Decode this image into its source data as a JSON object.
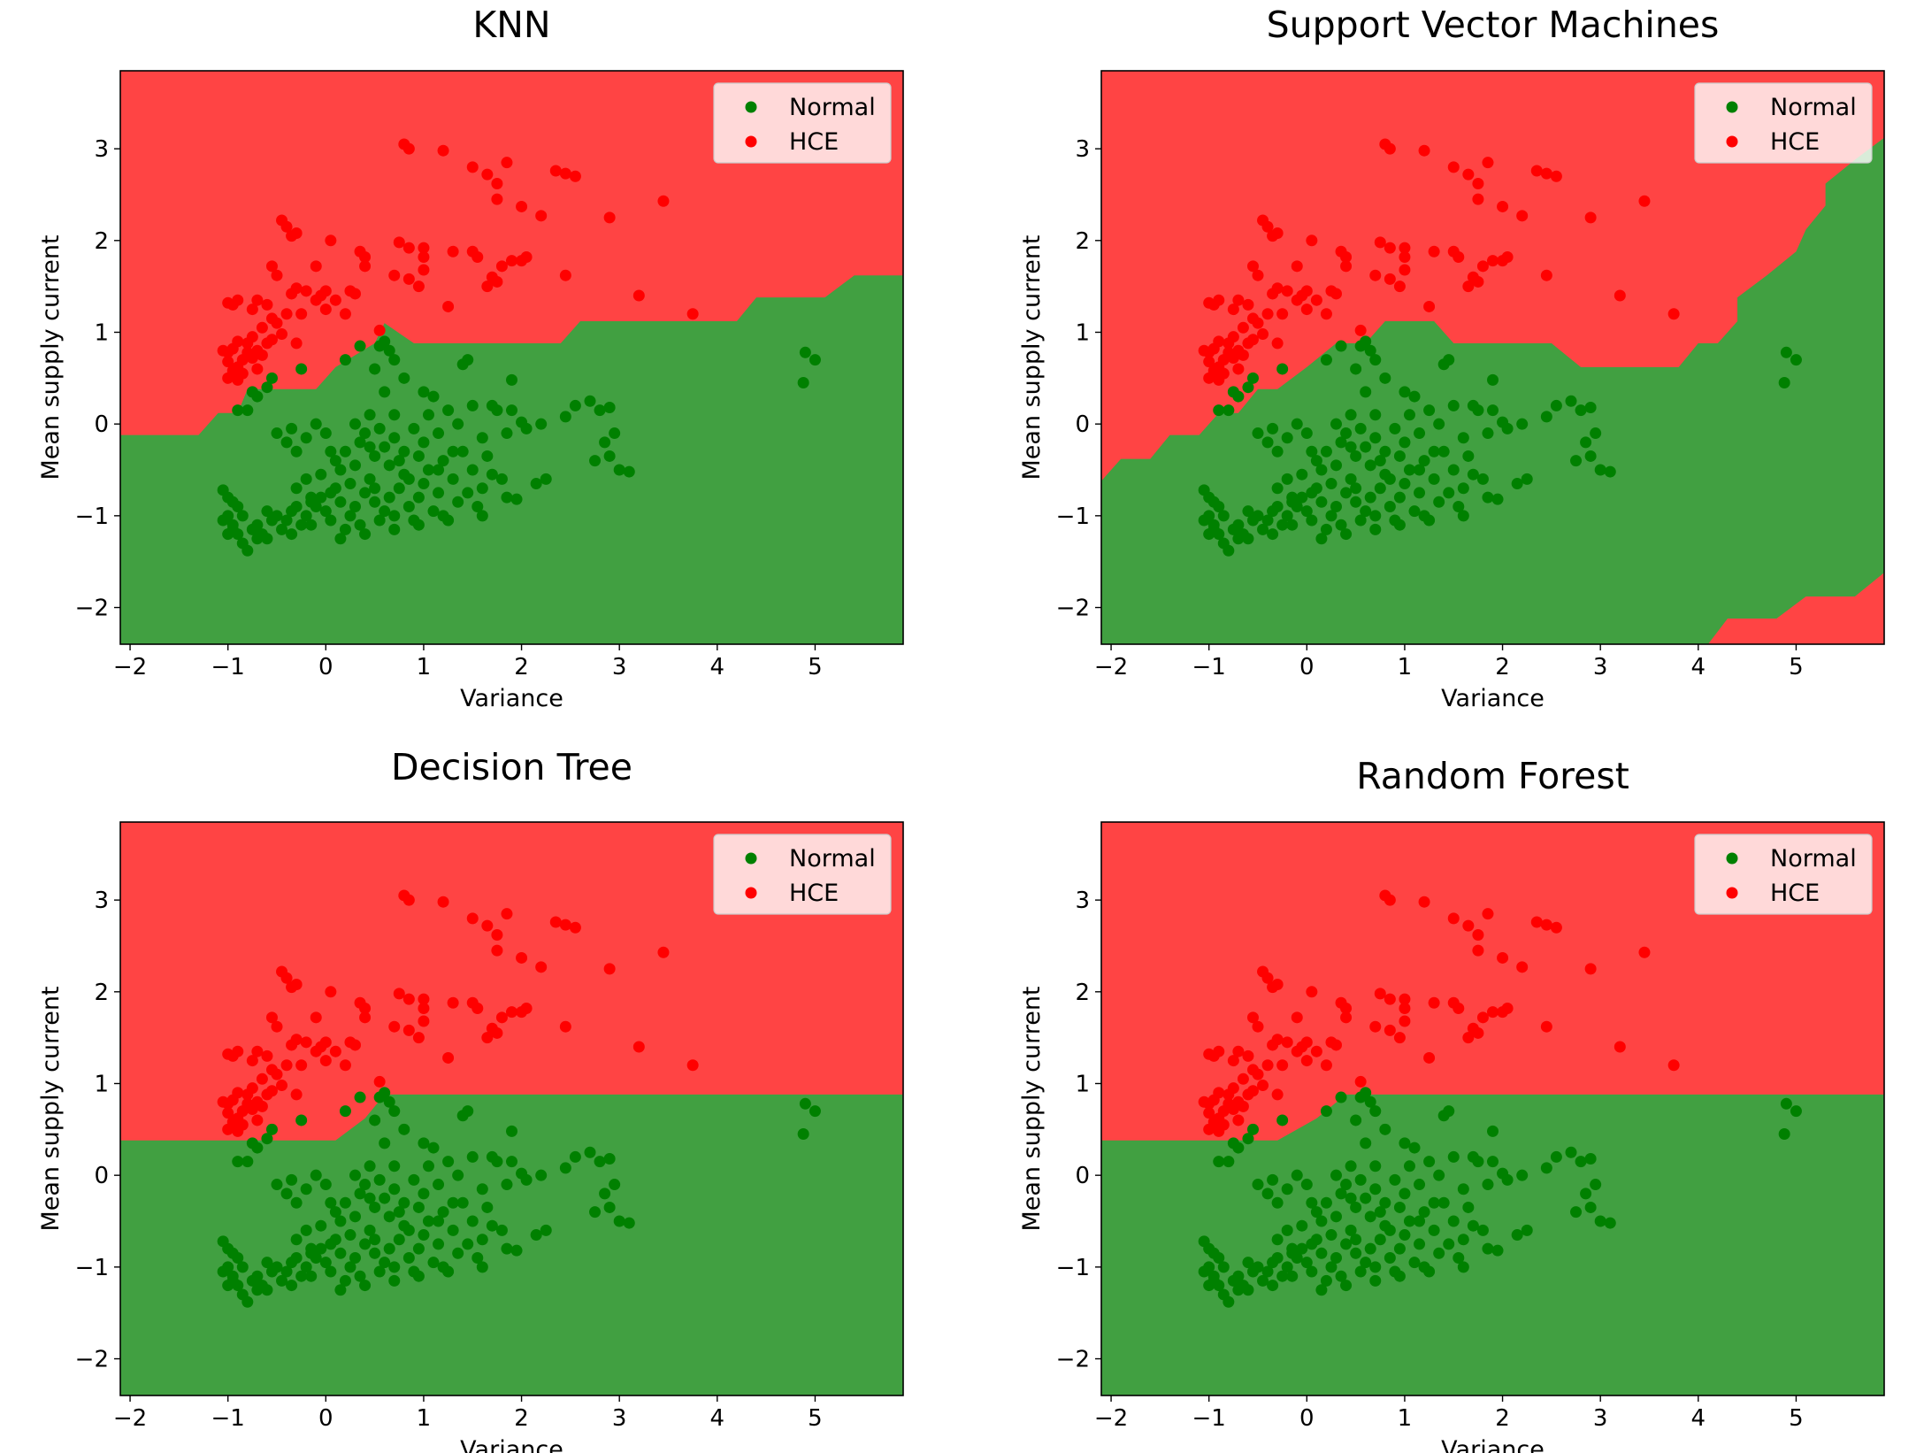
{
  "chart_data": [
    {
      "type": "scatter",
      "title": "KNN",
      "xlabel": "Variance",
      "ylabel": "Mean supply current",
      "xlim": [
        -2.1,
        5.9
      ],
      "ylim": [
        -2.4,
        3.85
      ],
      "xticks": [
        "−2",
        "−1",
        "0",
        "1",
        "2",
        "3",
        "4",
        "5"
      ],
      "yticks": [
        "−2",
        "−1",
        "0",
        "1",
        "2",
        "3"
      ],
      "legend": {
        "placement": "top-right",
        "entries": [
          "Normal",
          "HCE"
        ]
      },
      "grid": false,
      "colors": {
        "region_hce": "#ff4444",
        "region_normal": "#41a041",
        "normal": "#008000",
        "hce": "#ff0000"
      },
      "decision_boundary": [
        [
          -2.1,
          -0.12
        ],
        [
          -1.3,
          -0.12
        ],
        [
          -1.1,
          0.12
        ],
        [
          -0.9,
          0.12
        ],
        [
          -0.8,
          0.38
        ],
        [
          -0.1,
          0.38
        ],
        [
          0.1,
          0.62
        ],
        [
          0.5,
          0.88
        ],
        [
          0.6,
          1.1
        ],
        [
          0.9,
          0.88
        ],
        [
          2.4,
          0.88
        ],
        [
          2.6,
          1.12
        ],
        [
          4.2,
          1.12
        ],
        [
          4.4,
          1.38
        ],
        [
          5.1,
          1.38
        ],
        [
          5.4,
          1.62
        ],
        [
          5.9,
          1.62
        ]
      ]
    },
    {
      "type": "scatter",
      "title": "Support Vector Machines",
      "xlabel": "Variance",
      "ylabel": "Mean supply current",
      "xlim": [
        -2.1,
        5.9
      ],
      "ylim": [
        -2.4,
        3.85
      ],
      "xticks": [
        "−2",
        "−1",
        "0",
        "1",
        "2",
        "3",
        "4",
        "5"
      ],
      "yticks": [
        "−2",
        "−1",
        "0",
        "1",
        "2",
        "3"
      ],
      "legend": {
        "placement": "top-right",
        "entries": [
          "Normal",
          "HCE"
        ]
      },
      "grid": false,
      "colors": {
        "region_hce": "#ff4444",
        "region_normal": "#41a041",
        "normal": "#008000",
        "hce": "#ff0000"
      },
      "decision_boundary": [
        [
          -2.1,
          -0.62
        ],
        [
          -1.9,
          -0.38
        ],
        [
          -1.6,
          -0.38
        ],
        [
          -1.4,
          -0.12
        ],
        [
          -1.1,
          -0.12
        ],
        [
          -0.9,
          0.12
        ],
        [
          -0.7,
          0.12
        ],
        [
          -0.5,
          0.38
        ],
        [
          -0.3,
          0.38
        ],
        [
          0,
          0.62
        ],
        [
          0.3,
          0.88
        ],
        [
          0.6,
          0.88
        ],
        [
          0.8,
          1.12
        ],
        [
          1.3,
          1.12
        ],
        [
          1.5,
          0.88
        ],
        [
          2.5,
          0.88
        ],
        [
          2.8,
          0.62
        ],
        [
          3.8,
          0.62
        ],
        [
          4,
          0.88
        ],
        [
          4.2,
          0.88
        ],
        [
          4.4,
          1.12
        ],
        [
          4.4,
          1.38
        ],
        [
          4.7,
          1.62
        ],
        [
          5.0,
          1.88
        ],
        [
          5.1,
          2.12
        ],
        [
          5.3,
          2.38
        ],
        [
          5.3,
          2.62
        ],
        [
          5.6,
          2.88
        ],
        [
          5.9,
          3.12
        ]
      ],
      "decision_boundary_lower": [
        [
          4.1,
          -2.4
        ],
        [
          4.3,
          -2.12
        ],
        [
          4.8,
          -2.12
        ],
        [
          5.1,
          -1.88
        ],
        [
          5.6,
          -1.88
        ],
        [
          5.9,
          -1.62
        ]
      ]
    },
    {
      "type": "scatter",
      "title": "Decision Tree",
      "xlabel": "Variance",
      "ylabel": "Mean supply current",
      "xlim": [
        -2.1,
        5.9
      ],
      "ylim": [
        -2.4,
        3.85
      ],
      "xticks": [
        "−2",
        "−1",
        "0",
        "1",
        "2",
        "3",
        "4",
        "5"
      ],
      "yticks": [
        "−2",
        "−1",
        "0",
        "1",
        "2",
        "3"
      ],
      "legend": {
        "placement": "top-right",
        "entries": [
          "Normal",
          "HCE"
        ]
      },
      "grid": false,
      "colors": {
        "region_hce": "#ff4444",
        "region_normal": "#41a041",
        "normal": "#008000",
        "hce": "#ff0000"
      },
      "decision_boundary": [
        [
          -2.1,
          0.38
        ],
        [
          0.1,
          0.38
        ],
        [
          0.4,
          0.62
        ],
        [
          0.6,
          0.88
        ],
        [
          5.9,
          0.88
        ]
      ]
    },
    {
      "type": "scatter",
      "title": "Random Forest",
      "xlabel": "Variance",
      "ylabel": "Mean supply current",
      "xlim": [
        -2.1,
        5.9
      ],
      "ylim": [
        -2.4,
        3.85
      ],
      "xticks": [
        "−2",
        "−1",
        "0",
        "1",
        "2",
        "3",
        "4",
        "5"
      ],
      "yticks": [
        "−2",
        "−1",
        "0",
        "1",
        "2",
        "3"
      ],
      "legend": {
        "placement": "top-right",
        "entries": [
          "Normal",
          "HCE"
        ]
      },
      "grid": false,
      "colors": {
        "region_hce": "#ff4444",
        "region_normal": "#41a041",
        "normal": "#008000",
        "hce": "#ff0000"
      },
      "decision_boundary": [
        [
          -2.1,
          0.38
        ],
        [
          -0.5,
          0.38
        ],
        [
          -0.3,
          0.38
        ],
        [
          0.1,
          0.62
        ],
        [
          0.4,
          0.88
        ],
        [
          5.9,
          0.88
        ]
      ]
    }
  ],
  "points": {
    "hce": [
      [
        0.8,
        3.05
      ],
      [
        0.85,
        3.0
      ],
      [
        1.2,
        2.98
      ],
      [
        1.5,
        2.8
      ],
      [
        1.65,
        2.72
      ],
      [
        1.75,
        2.62
      ],
      [
        1.85,
        2.85
      ],
      [
        2.35,
        2.76
      ],
      [
        2.45,
        2.73
      ],
      [
        2.55,
        2.7
      ],
      [
        1.75,
        2.45
      ],
      [
        2.0,
        2.37
      ],
      [
        2.2,
        2.27
      ],
      [
        2.9,
        2.25
      ],
      [
        3.45,
        2.43
      ],
      [
        -0.45,
        2.22
      ],
      [
        -0.4,
        2.15
      ],
      [
        -0.35,
        2.05
      ],
      [
        -0.3,
        2.08
      ],
      [
        0.05,
        2.0
      ],
      [
        0.35,
        1.88
      ],
      [
        0.4,
        1.82
      ],
      [
        0.75,
        1.98
      ],
      [
        0.85,
        1.92
      ],
      [
        1.0,
        1.92
      ],
      [
        1.0,
        1.82
      ],
      [
        1.3,
        1.88
      ],
      [
        1.5,
        1.88
      ],
      [
        1.55,
        1.82
      ],
      [
        1.9,
        1.78
      ],
      [
        2.0,
        1.78
      ],
      [
        2.05,
        1.82
      ],
      [
        2.45,
        1.62
      ],
      [
        1.8,
        1.72
      ],
      [
        1.7,
        1.6
      ],
      [
        1.75,
        1.55
      ],
      [
        1.65,
        1.5
      ],
      [
        1.0,
        1.68
      ],
      [
        0.7,
        1.62
      ],
      [
        0.85,
        1.58
      ],
      [
        0.4,
        1.72
      ],
      [
        0.25,
        1.45
      ],
      [
        0.0,
        1.45
      ],
      [
        -0.05,
        1.4
      ],
      [
        -0.2,
        1.45
      ],
      [
        -0.3,
        1.48
      ],
      [
        -0.35,
        1.42
      ],
      [
        -0.5,
        1.62
      ],
      [
        -0.55,
        1.72
      ],
      [
        -0.1,
        1.72
      ],
      [
        -0.1,
        1.35
      ],
      [
        0.1,
        1.35
      ],
      [
        0.3,
        1.42
      ],
      [
        0.0,
        1.25
      ],
      [
        -0.25,
        1.2
      ],
      [
        -0.4,
        1.2
      ],
      [
        -0.55,
        1.15
      ],
      [
        -0.7,
        1.35
      ],
      [
        -0.75,
        1.25
      ],
      [
        -0.9,
        1.35
      ],
      [
        -0.95,
        1.3
      ],
      [
        -1.0,
        1.32
      ],
      [
        -0.6,
        1.3
      ],
      [
        -0.5,
        1.1
      ],
      [
        -0.45,
        0.98
      ],
      [
        -0.65,
        1.05
      ],
      [
        -0.75,
        0.95
      ],
      [
        -0.8,
        0.88
      ],
      [
        -0.9,
        0.9
      ],
      [
        -0.95,
        0.82
      ],
      [
        -1.0,
        0.78
      ],
      [
        -1.05,
        0.8
      ],
      [
        -1.0,
        0.68
      ],
      [
        -0.95,
        0.58
      ],
      [
        -0.9,
        0.62
      ],
      [
        -0.85,
        0.7
      ],
      [
        -0.8,
        0.78
      ],
      [
        -0.75,
        0.72
      ],
      [
        -0.7,
        0.8
      ],
      [
        -0.65,
        0.75
      ],
      [
        -0.6,
        0.88
      ],
      [
        -0.55,
        0.92
      ],
      [
        -1.0,
        0.5
      ],
      [
        -0.9,
        0.48
      ],
      [
        -0.85,
        0.55
      ],
      [
        -0.7,
        0.6
      ],
      [
        0.95,
        1.5
      ],
      [
        1.25,
        1.28
      ],
      [
        3.2,
        1.4
      ],
      [
        3.75,
        1.2
      ],
      [
        0.2,
        1.2
      ],
      [
        -0.3,
        0.88
      ],
      [
        0.55,
        1.02
      ]
    ],
    "normal": [
      [
        -1.05,
        -0.72
      ],
      [
        -1.0,
        -0.8
      ],
      [
        -0.95,
        -0.85
      ],
      [
        -0.9,
        -0.9
      ],
      [
        -1.05,
        -1.05
      ],
      [
        -1.0,
        -1.0
      ],
      [
        -0.95,
        -1.1
      ],
      [
        -0.9,
        -1.2
      ],
      [
        -0.85,
        -1.3
      ],
      [
        -0.8,
        -1.38
      ],
      [
        -0.75,
        -1.15
      ],
      [
        -0.7,
        -1.1
      ],
      [
        -0.65,
        -1.2
      ],
      [
        -0.6,
        -1.25
      ],
      [
        -0.55,
        -1.05
      ],
      [
        -0.5,
        -1.0
      ],
      [
        -0.45,
        -1.15
      ],
      [
        -0.4,
        -1.05
      ],
      [
        -0.35,
        -0.95
      ],
      [
        -0.3,
        -0.9
      ],
      [
        -0.25,
        -1.1
      ],
      [
        -0.2,
        -1.0
      ],
      [
        -0.15,
        -0.85
      ],
      [
        -0.1,
        -0.9
      ],
      [
        -0.05,
        -0.8
      ],
      [
        0.0,
        -0.95
      ],
      [
        0.05,
        -1.05
      ],
      [
        0.1,
        -0.7
      ],
      [
        0.15,
        -0.85
      ],
      [
        0.2,
        -1.15
      ],
      [
        0.25,
        -1.0
      ],
      [
        0.3,
        -0.9
      ],
      [
        0.35,
        -1.1
      ],
      [
        0.4,
        -0.75
      ],
      [
        0.45,
        -0.6
      ],
      [
        0.5,
        -0.85
      ],
      [
        0.55,
        -1.05
      ],
      [
        0.6,
        -0.95
      ],
      [
        0.65,
        -0.8
      ],
      [
        0.7,
        -1.0
      ],
      [
        0.75,
        -0.7
      ],
      [
        0.8,
        -0.55
      ],
      [
        0.85,
        -0.9
      ],
      [
        0.9,
        -1.05
      ],
      [
        0.95,
        -0.8
      ],
      [
        1.0,
        -0.65
      ],
      [
        1.05,
        -0.5
      ],
      [
        1.1,
        -0.95
      ],
      [
        1.15,
        -0.75
      ],
      [
        1.2,
        -1.0
      ],
      [
        1.3,
        -0.6
      ],
      [
        1.35,
        -0.85
      ],
      [
        1.45,
        -0.75
      ],
      [
        1.5,
        -0.5
      ],
      [
        1.6,
        -0.7
      ],
      [
        1.7,
        -0.55
      ],
      [
        1.8,
        -0.6
      ],
      [
        1.85,
        -0.8
      ],
      [
        0.2,
        -0.3
      ],
      [
        0.3,
        -0.45
      ],
      [
        0.35,
        -0.2
      ],
      [
        0.4,
        -0.1
      ],
      [
        0.5,
        -0.35
      ],
      [
        0.55,
        -0.05
      ],
      [
        0.6,
        -0.25
      ],
      [
        0.7,
        -0.15
      ],
      [
        0.75,
        -0.4
      ],
      [
        0.8,
        -0.3
      ],
      [
        0.9,
        -0.05
      ],
      [
        1.0,
        -0.2
      ],
      [
        1.05,
        0.1
      ],
      [
        1.15,
        -0.1
      ],
      [
        1.25,
        0.15
      ],
      [
        1.35,
        0.0
      ],
      [
        1.4,
        -0.3
      ],
      [
        1.5,
        0.2
      ],
      [
        1.6,
        -0.15
      ],
      [
        1.7,
        0.2
      ],
      [
        1.75,
        0.15
      ],
      [
        1.85,
        -0.1
      ],
      [
        1.9,
        0.15
      ],
      [
        1.0,
        0.35
      ],
      [
        1.1,
        0.3
      ],
      [
        0.8,
        0.5
      ],
      [
        0.5,
        0.6
      ],
      [
        0.55,
        0.85
      ],
      [
        0.6,
        0.9
      ],
      [
        0.65,
        0.8
      ],
      [
        0.7,
        0.7
      ],
      [
        1.4,
        0.65
      ],
      [
        1.45,
        0.7
      ],
      [
        0.2,
        0.7
      ],
      [
        0.35,
        0.85
      ],
      [
        -0.25,
        0.6
      ],
      [
        -0.6,
        0.4
      ],
      [
        -0.7,
        0.3
      ],
      [
        -0.8,
        0.15
      ],
      [
        -0.9,
        0.15
      ],
      [
        -0.75,
        0.35
      ],
      [
        -0.55,
        0.5
      ],
      [
        -0.3,
        -0.3
      ],
      [
        -0.4,
        -0.2
      ],
      [
        -0.5,
        -0.1
      ],
      [
        -0.35,
        -0.05
      ],
      [
        -0.2,
        -0.15
      ],
      [
        -0.1,
        0.0
      ],
      [
        0.0,
        -0.1
      ],
      [
        0.05,
        -0.3
      ],
      [
        0.1,
        -0.4
      ],
      [
        0.15,
        -0.5
      ],
      [
        -0.05,
        -0.55
      ],
      [
        -0.2,
        -0.6
      ],
      [
        -0.3,
        -0.7
      ],
      [
        2.05,
        -0.05
      ],
      [
        2.2,
        0.0
      ],
      [
        2.25,
        -0.6
      ],
      [
        2.15,
        -0.65
      ],
      [
        2.45,
        0.08
      ],
      [
        2.55,
        0.2
      ],
      [
        2.7,
        0.25
      ],
      [
        2.8,
        0.15
      ],
      [
        2.85,
        -0.2
      ],
      [
        2.9,
        -0.35
      ],
      [
        2.95,
        -0.1
      ],
      [
        3.0,
        -0.5
      ],
      [
        3.1,
        -0.52
      ],
      [
        2.75,
        -0.4
      ],
      [
        2.9,
        0.18
      ],
      [
        4.9,
        0.78
      ],
      [
        5.0,
        0.7
      ],
      [
        4.88,
        0.45
      ],
      [
        1.9,
        0.48
      ],
      [
        2.0,
        0.02
      ],
      [
        1.95,
        -0.82
      ],
      [
        1.55,
        -0.9
      ],
      [
        1.6,
        -1.0
      ],
      [
        1.25,
        -1.05
      ],
      [
        0.95,
        -1.1
      ],
      [
        0.7,
        -1.15
      ],
      [
        0.4,
        -1.2
      ],
      [
        0.15,
        -1.25
      ],
      [
        -0.15,
        -1.1
      ],
      [
        -0.35,
        -1.2
      ],
      [
        -0.7,
        -1.25
      ],
      [
        -0.95,
        -1.15
      ],
      [
        -1.0,
        -1.2
      ],
      [
        -0.85,
        -1.0
      ],
      [
        -0.6,
        -0.95
      ],
      [
        0.45,
        -0.25
      ],
      [
        0.65,
        -0.45
      ],
      [
        0.85,
        -0.6
      ],
      [
        1.2,
        -0.4
      ],
      [
        1.3,
        -0.3
      ],
      [
        0.95,
        -0.35
      ],
      [
        0.25,
        -0.65
      ],
      [
        0.05,
        -0.75
      ],
      [
        -0.15,
        -0.8
      ],
      [
        0.5,
        -0.7
      ],
      [
        0.6,
        0.35
      ],
      [
        0.7,
        0.1
      ],
      [
        0.45,
        0.1
      ],
      [
        0.3,
        0.0
      ],
      [
        1.15,
        -0.5
      ],
      [
        1.65,
        -0.35
      ]
    ]
  }
}
